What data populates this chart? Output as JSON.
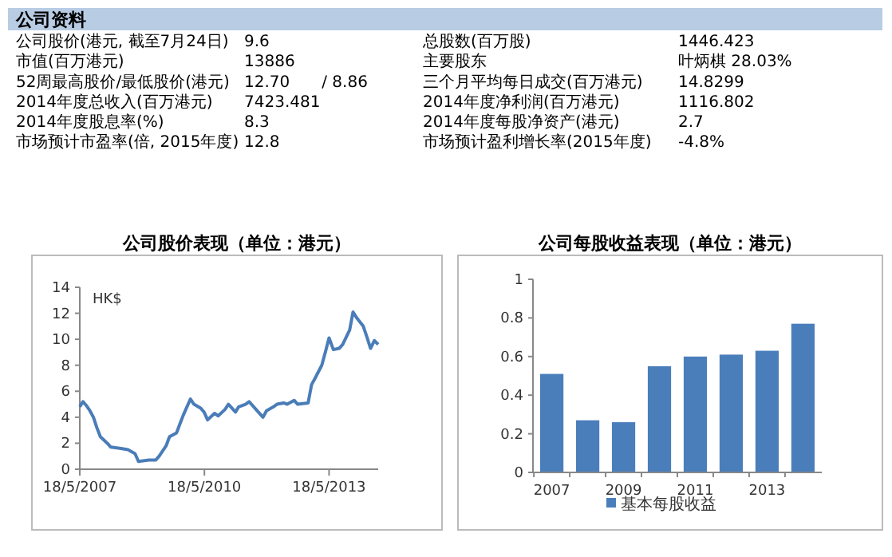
{
  "chart_data": [
    {
      "type": "other",
      "title": "公司资料",
      "annotations": [
        "公司股价(港元, 截至7月24日)",
        "9.6",
        "总股数(百万股)",
        "1446.423",
        "市值(百万港元)",
        "13886",
        "主要股东",
        "叶炳棋 28.03%",
        "52周最高股价/最低股价(港元)",
        "12.70　　/ 8.86",
        "三个月平均每日成交(百万港元)",
        "14.8299",
        "2014年度总收入(百万港元)",
        "7423.481",
        "2014年度净利润(百万港元)",
        "1116.802",
        "2014年度股息率(%)",
        "8.3",
        "2014年度每股净资产(港元)",
        "2.7",
        "市场预计市盈率(倍, 2015年度)",
        "12.8",
        "市场预计盈利增长率(2015年度)",
        "-4.8%"
      ]
    },
    {
      "type": "line",
      "title": "公司股价表现（单位：港元）",
      "ylabel": "HK$",
      "x": [
        "2007-05-18",
        "2007-06",
        "2007-07",
        "2007-08",
        "2007-09",
        "2007-10",
        "2007-11",
        "2008-01",
        "2008-02",
        "2008-05",
        "2008-07",
        "2008-09",
        "2008-10",
        "2009-01",
        "2009-03",
        "2009-04",
        "2009-06",
        "2009-07",
        "2009-09",
        "2009-10",
        "2009-11",
        "2010-01",
        "2010-02",
        "2010-04",
        "2010-05",
        "2010-06",
        "2010-08",
        "2010-09",
        "2010-11",
        "2010-12",
        "2011-02",
        "2011-03",
        "2011-05",
        "2011-06",
        "2011-08",
        "2011-10",
        "2011-11",
        "2012-01",
        "2012-02",
        "2012-04",
        "2012-05",
        "2012-07",
        "2012-08",
        "2012-11",
        "2012-12",
        "2013-01-15",
        "2013-03",
        "2013-04",
        "2013-05-18",
        "2013-06-25",
        "2013-08",
        "2013-09",
        "2013-11",
        "2013-12-15",
        "2014-01-20",
        "2014-03",
        "2014-04-15",
        "2014-05-18",
        "2014-06-20",
        "2014-07-24"
      ],
      "series": [
        {
          "color": "#4a7db8",
          "values": [
            4.8,
            5.2,
            4.9,
            4.5,
            4.0,
            3.2,
            2.5,
            2.0,
            1.7,
            1.6,
            1.5,
            1.2,
            0.6,
            0.7,
            0.7,
            1.0,
            1.8,
            2.5,
            2.8,
            3.5,
            4.2,
            5.4,
            5.0,
            4.7,
            4.4,
            3.8,
            4.3,
            4.1,
            4.6,
            5.0,
            4.4,
            4.8,
            5.0,
            5.2,
            4.6,
            4.0,
            4.5,
            4.8,
            5.0,
            5.1,
            5.0,
            5.3,
            5.0,
            5.1,
            6.5,
            7.0,
            8.0,
            9.0,
            10.1,
            9.2,
            9.3,
            9.6,
            10.7,
            12.1,
            11.6,
            11.0,
            10.2,
            9.3,
            9.9,
            9.6
          ]
        }
      ],
      "xlim": [
        "2007-05-18",
        "2014-07-24"
      ],
      "xticks": [
        {
          "value": "2007-05-18",
          "label": "18/5/2007"
        },
        {
          "value": "2010-05-18",
          "label": "18/5/2010"
        },
        {
          "value": "2013-05-18",
          "label": "18/5/2013"
        }
      ],
      "ylim": [
        0,
        14
      ],
      "yticks": [
        0,
        2,
        4,
        6,
        8,
        10,
        12,
        14
      ],
      "grid": false,
      "legend": false
    },
    {
      "type": "bar",
      "title": "公司每股收益表现（单位：港元）",
      "categories": [
        "2007",
        null,
        "2009",
        null,
        "2011",
        null,
        "2013",
        null
      ],
      "series": [
        {
          "name": "基本每股收益",
          "color": "#4a7ebb",
          "values": [
            0.51,
            0.27,
            0.26,
            0.55,
            0.6,
            0.61,
            0.63,
            0.77
          ]
        }
      ],
      "ylim": [
        0,
        1
      ],
      "yticks": [
        0,
        0.2,
        0.4,
        0.6,
        0.8,
        1
      ],
      "grid": false,
      "legend": "bottom"
    }
  ]
}
